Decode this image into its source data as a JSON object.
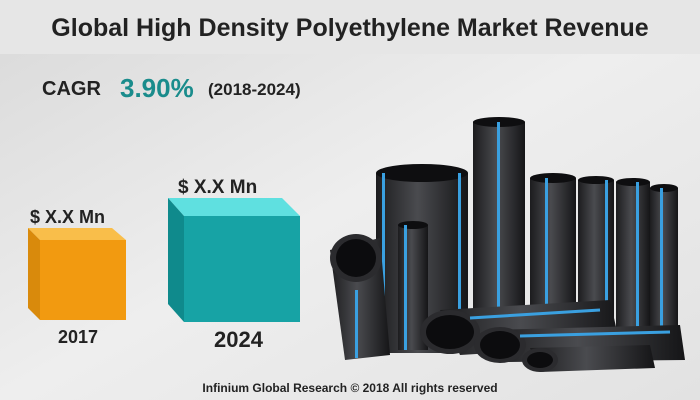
{
  "header": {
    "title": "Global High Density Polyethylene Market Revenue"
  },
  "cagr": {
    "label": "CAGR",
    "value": "3.90%",
    "period": "(2018-2024)"
  },
  "bars": [
    {
      "value_label": "$ X.X Mn",
      "year": "2017"
    },
    {
      "value_label": "$ X.X Mn",
      "year": "2024"
    }
  ],
  "footer": {
    "text": "Infinium Global Research © 2018 All rights reserved"
  }
}
